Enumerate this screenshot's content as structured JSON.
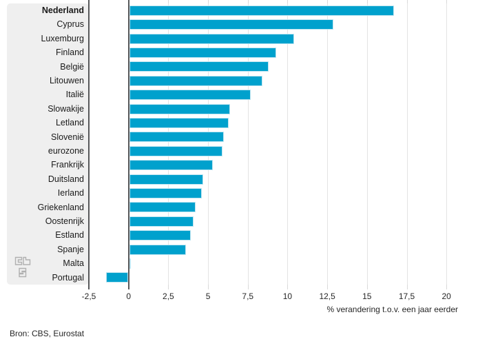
{
  "chart_data": {
    "type": "bar",
    "orientation": "horizontal",
    "title": "",
    "categories": [
      "Nederland",
      "Cyprus",
      "Luxemburg",
      "Finland",
      "België",
      "Litouwen",
      "Italië",
      "Slowakije",
      "Letland",
      "Slovenië",
      "eurozone",
      "Frankrijk",
      "Duitsland",
      "Ierland",
      "Griekenland",
      "Oostenrijk",
      "Estland",
      "Spanje",
      "Malta",
      "Portugal"
    ],
    "values": [
      16.7,
      12.9,
      10.4,
      9.3,
      8.8,
      8.4,
      7.7,
      6.4,
      6.3,
      6.0,
      5.9,
      5.3,
      4.7,
      4.6,
      4.2,
      4.1,
      3.9,
      3.6,
      0.1,
      -1.4
    ],
    "highlight_category": "Nederland",
    "xlabel": "% verandering t.o.v. een jaar eerder",
    "ylabel": "",
    "xlim": [
      -2.5,
      20
    ],
    "grid": true,
    "legend": false,
    "x_ticks": [
      {
        "value": -2.5,
        "label": "-2,5"
      },
      {
        "value": 0,
        "label": "0"
      },
      {
        "value": 2.5,
        "label": "2,5"
      },
      {
        "value": 5,
        "label": "5"
      },
      {
        "value": 7.5,
        "label": "7,5"
      },
      {
        "value": 10,
        "label": "10"
      },
      {
        "value": 12.5,
        "label": "12,5"
      },
      {
        "value": 15,
        "label": "15"
      },
      {
        "value": 17.5,
        "label": "17,5"
      },
      {
        "value": 20,
        "label": "20"
      }
    ]
  },
  "source": "Bron: CBS, Eurostat",
  "colors": {
    "bar": "#00a1cd",
    "bar_border": "#bfe5f1",
    "grid": "#e3e3e3",
    "axis": "#57585a",
    "panel": "#efefef",
    "logo": "#b0b0b0"
  }
}
